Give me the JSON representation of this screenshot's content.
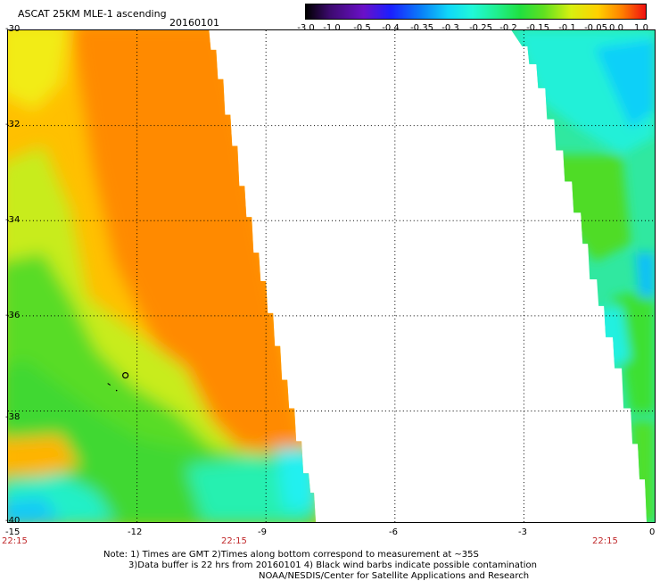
{
  "header": {
    "title": "ASCAT 25KM MLE-1 ascending",
    "date": "20160101"
  },
  "colorbar": {
    "labels": [
      "-3.0",
      "-1.0",
      "-0.5",
      "-0.4",
      "-0.35",
      "-0.3",
      "-0.25",
      "-0.2",
      "-0.15",
      "-0.1",
      "-0.05",
      "0.0",
      "1.0"
    ],
    "colors": [
      "#2a0038",
      "#5a10a8",
      "#1f2de8",
      "#0a78f0",
      "#12c8f4",
      "#2ff0e2",
      "#22f0a6",
      "#1fe050",
      "#55e020",
      "#b8ee16",
      "#f4e400",
      "#ffb000",
      "#f04010"
    ]
  },
  "axes": {
    "lat_labels": [
      "-30",
      "-32",
      "-34",
      "-36",
      "-38",
      "-40"
    ],
    "lon_labels": [
      "-15",
      "-12",
      "-9",
      "-6",
      "-3",
      "0"
    ]
  },
  "time_labels": [
    "22:15",
    "22:15",
    "22:15"
  ],
  "notes": {
    "line1": "Note: 1) Times are GMT 2)Times along bottom correspond to measurement at ~35S",
    "line2": "3)Data buffer is 22 hrs from 20160101 4) Black wind barbs indicate possible contamination",
    "line3": "NOAA/NESDIS/Center for Satellite Applications and Research"
  },
  "map_colors": {
    "orange": "#ff8800",
    "yellow_orange": "#ffc400",
    "yellow": "#f2ee10",
    "yellow_green": "#a8ea20",
    "green": "#38dc28",
    "aqua_green": "#2ff0b0",
    "cyan": "#18f0f0",
    "light_blue": "#10b8f8"
  }
}
